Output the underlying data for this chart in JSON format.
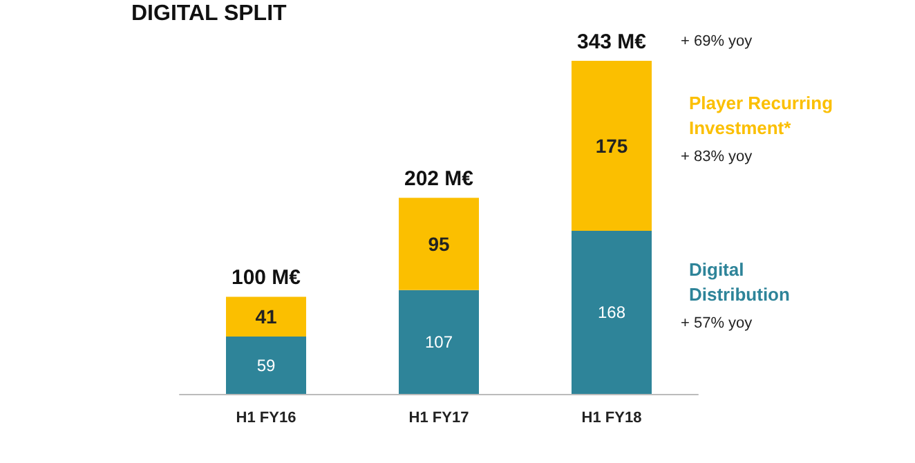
{
  "chart_data": {
    "type": "bar",
    "title": "DIGITAL SPLIT",
    "categories": [
      "H1 FY16",
      "H1 FY17",
      "H1 FY18"
    ],
    "stacked": true,
    "data_labels": true,
    "legend": false,
    "series": [
      {
        "name": "Digital Distribution",
        "color": "#2e8499",
        "values": [
          59,
          107,
          168
        ]
      },
      {
        "name": "Player Recurring Investment*",
        "color": "#fbbf00",
        "values": [
          41,
          95,
          175
        ]
      }
    ],
    "totals": [
      "100 M€",
      "202 M€",
      "343 M€"
    ],
    "annotations": [
      "+ 69% yoy",
      "+ 83% yoy",
      "+ 57% yoy"
    ]
  }
}
